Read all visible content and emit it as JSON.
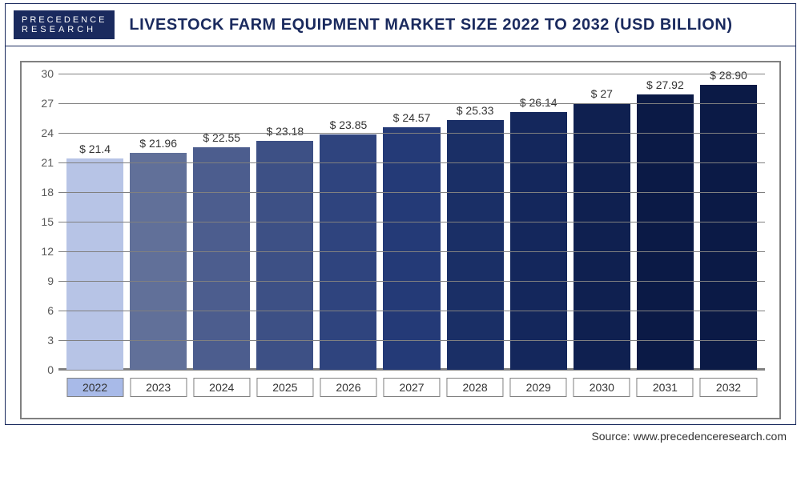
{
  "logo": {
    "line1": "PRECEDENCE",
    "line2": "RESEARCH"
  },
  "title": "LIVESTOCK FARM EQUIPMENT MARKET SIZE 2022 TO 2032 (USD BILLION)",
  "source": "Source: www.precedenceresearch.com",
  "chart": {
    "type": "bar",
    "ylim": [
      0,
      30
    ],
    "ytick_step": 3,
    "yticks": [
      0,
      3,
      6,
      9,
      12,
      15,
      18,
      21,
      24,
      27,
      30
    ],
    "grid_color": "#808080",
    "background_color": "#ffffff",
    "label_fontsize": 14,
    "value_fontsize": 14,
    "value_prefix": "$ ",
    "highlight_first_xlabel": true,
    "highlight_color": "#a8bae8",
    "categories": [
      "2022",
      "2023",
      "2024",
      "2025",
      "2026",
      "2027",
      "2028",
      "2029",
      "2030",
      "2031",
      "2032"
    ],
    "values": [
      21.4,
      21.96,
      22.55,
      23.18,
      23.85,
      24.57,
      25.33,
      26.14,
      27,
      27.92,
      28.9
    ],
    "value_labels": [
      "$ 21.4",
      "$ 21.96",
      "$ 22.55",
      "$ 23.18",
      "$ 23.85",
      "$ 24.57",
      "$ 25.33",
      "$ 26.14",
      "$ 27",
      "$ 27.92",
      "$ 28.90"
    ],
    "bar_colors": [
      "#b7c4e6",
      "#617099",
      "#4c5d8e",
      "#3d5085",
      "#2f447e",
      "#243a77",
      "#1a2f66",
      "#14275c",
      "#0f2050",
      "#0b1a46",
      "#0b1a46"
    ]
  }
}
